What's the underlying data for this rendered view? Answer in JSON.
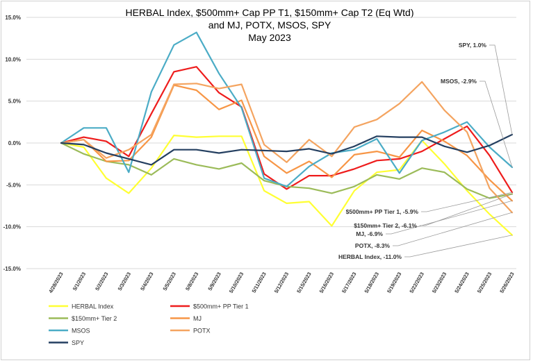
{
  "chart_data": {
    "type": "line",
    "title": [
      "HERBAL Index, $500mm+ Cap PP T1, $150mm+ Cap T2  (Eq Wtd)",
      "and MJ, POTX, MSOS, SPY",
      "May 2023"
    ],
    "xlabel": "",
    "ylabel": "",
    "ylim": [
      -0.15,
      0.15
    ],
    "yticks": [
      0.15,
      0.1,
      0.05,
      0.0,
      -0.05,
      -0.1,
      -0.15
    ],
    "ytick_labels": [
      "15.0%",
      "10.0%",
      "5.0%",
      "0.0%",
      "-5.0%",
      "-10.0%",
      "-15.0%"
    ],
    "grid": true,
    "legend_position": "bottom-left",
    "categories": [
      "4/28/2023",
      "5/1/2023",
      "5/2/2023",
      "5/3/2023",
      "5/4/2023",
      "5/5/2023",
      "5/8/2023",
      "5/9/2023",
      "5/10/2023",
      "5/11/2023",
      "5/12/2023",
      "5/15/2023",
      "5/16/2023",
      "5/17/2023",
      "5/18/2023",
      "5/19/2023",
      "5/22/2023",
      "5/23/2023",
      "5/24/2023",
      "5/25/2023",
      "5/26/2023"
    ],
    "series": [
      {
        "name": "HERBAL Index",
        "color": "#ffff33",
        "values": [
          0.0,
          -0.005,
          -0.042,
          -0.06,
          -0.03,
          0.009,
          0.007,
          0.008,
          0.008,
          -0.057,
          -0.072,
          -0.07,
          -0.099,
          -0.057,
          -0.035,
          -0.032,
          0.003,
          -0.025,
          -0.057,
          -0.085,
          -0.11
        ]
      },
      {
        "name": "$500mm+ PP Tier 1",
        "color": "#ee1c1c",
        "values": [
          0.0,
          0.007,
          0.002,
          -0.016,
          0.035,
          0.085,
          0.091,
          0.06,
          0.043,
          -0.037,
          -0.055,
          -0.039,
          -0.039,
          -0.031,
          -0.021,
          -0.019,
          -0.01,
          0.005,
          0.02,
          -0.015,
          -0.059
        ]
      },
      {
        "name": "$150mm+ Tier 2",
        "color": "#9bbb59",
        "values": [
          0.0,
          -0.013,
          -0.022,
          -0.026,
          -0.038,
          -0.019,
          -0.026,
          -0.031,
          -0.024,
          -0.045,
          -0.052,
          -0.054,
          -0.06,
          -0.052,
          -0.038,
          -0.043,
          -0.03,
          -0.035,
          -0.055,
          -0.066,
          -0.061
        ]
      },
      {
        "name": "MJ",
        "color": "#f79646",
        "values": [
          0.0,
          0.004,
          -0.022,
          -0.021,
          0.007,
          0.069,
          0.063,
          0.04,
          0.051,
          -0.016,
          -0.036,
          -0.022,
          -0.041,
          -0.014,
          -0.01,
          -0.017,
          0.015,
          0.002,
          -0.015,
          -0.044,
          -0.069
        ]
      },
      {
        "name": "MSOS",
        "color": "#4bacc6",
        "values": [
          0.0,
          0.018,
          0.018,
          -0.035,
          0.061,
          0.117,
          0.132,
          0.083,
          0.042,
          -0.042,
          -0.052,
          -0.028,
          -0.012,
          -0.008,
          0.005,
          -0.036,
          0.003,
          0.013,
          0.025,
          -0.005,
          -0.029
        ]
      },
      {
        "name": "POTX",
        "color": "#f4a460",
        "values": [
          0.0,
          0.004,
          -0.018,
          -0.008,
          0.01,
          0.07,
          0.071,
          0.065,
          0.07,
          -0.002,
          -0.023,
          0.004,
          -0.016,
          0.019,
          0.028,
          0.047,
          0.073,
          0.039,
          0.013,
          -0.054,
          -0.083
        ]
      },
      {
        "name": "SPY",
        "color": "#243f60",
        "values": [
          0.0,
          -0.002,
          -0.012,
          -0.019,
          -0.026,
          -0.008,
          -0.008,
          -0.012,
          -0.008,
          -0.009,
          -0.01,
          -0.007,
          -0.013,
          -0.004,
          0.008,
          0.007,
          0.007,
          -0.004,
          -0.011,
          -0.003,
          0.01
        ]
      }
    ],
    "annotations": [
      {
        "text": "SPY, 1.0%",
        "series": "SPY"
      },
      {
        "text": "MSOS, -2.9%",
        "series": "MSOS"
      },
      {
        "text": "$500mm+ PP Tier 1, -5.9%",
        "series": "$500mm+ PP Tier 1"
      },
      {
        "text": "$150mm+ Tier 2, -6.1%",
        "series": "$150mm+ Tier 2"
      },
      {
        "text": "MJ, -6.9%",
        "series": "MJ"
      },
      {
        "text": "POTX, -8.3%",
        "series": "POTX"
      },
      {
        "text": "HERBAL Index, -11.0%",
        "series": "HERBAL Index"
      }
    ],
    "legend": [
      {
        "name": "HERBAL Index",
        "color": "#ffff33"
      },
      {
        "name": "$500mm+ PP Tier 1",
        "color": "#ee1c1c"
      },
      {
        "name": "$150mm+ Tier 2",
        "color": "#9bbb59"
      },
      {
        "name": "MJ",
        "color": "#f79646"
      },
      {
        "name": "MSOS",
        "color": "#4bacc6"
      },
      {
        "name": "POTX",
        "color": "#f4a460"
      },
      {
        "name": "SPY",
        "color": "#243f60"
      }
    ]
  }
}
